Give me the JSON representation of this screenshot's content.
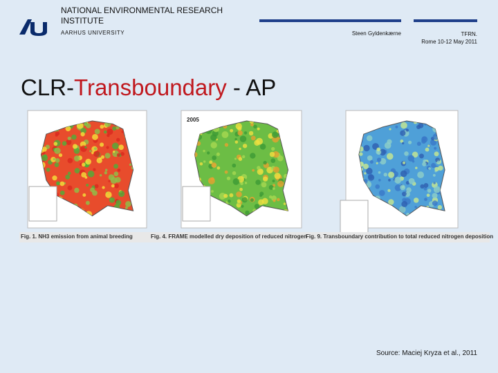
{
  "header": {
    "institute": "NATIONAL ENVIRONMENTAL RESEARCH INSTITUTE",
    "university": "AARHUS UNIVERSITY",
    "author": "Steen Gyldenkærne",
    "event": "TFRN.",
    "date": "Rome 10-12 May 2011"
  },
  "title": [
    "CLR-",
    "Transboundary",
    " - AP"
  ],
  "figures": [
    {
      "caption": "Fig. 1. NH3 emission from animal breeding"
    },
    {
      "caption": "Fig. 4. FRAME modelled dry deposition of reduced nitrogen",
      "label": "2005"
    },
    {
      "caption": "Fig. 9. Transboundary contribution to total reduced nitrogen deposition"
    }
  ],
  "source": "Source: Maciej Kryza et al., 2011"
}
